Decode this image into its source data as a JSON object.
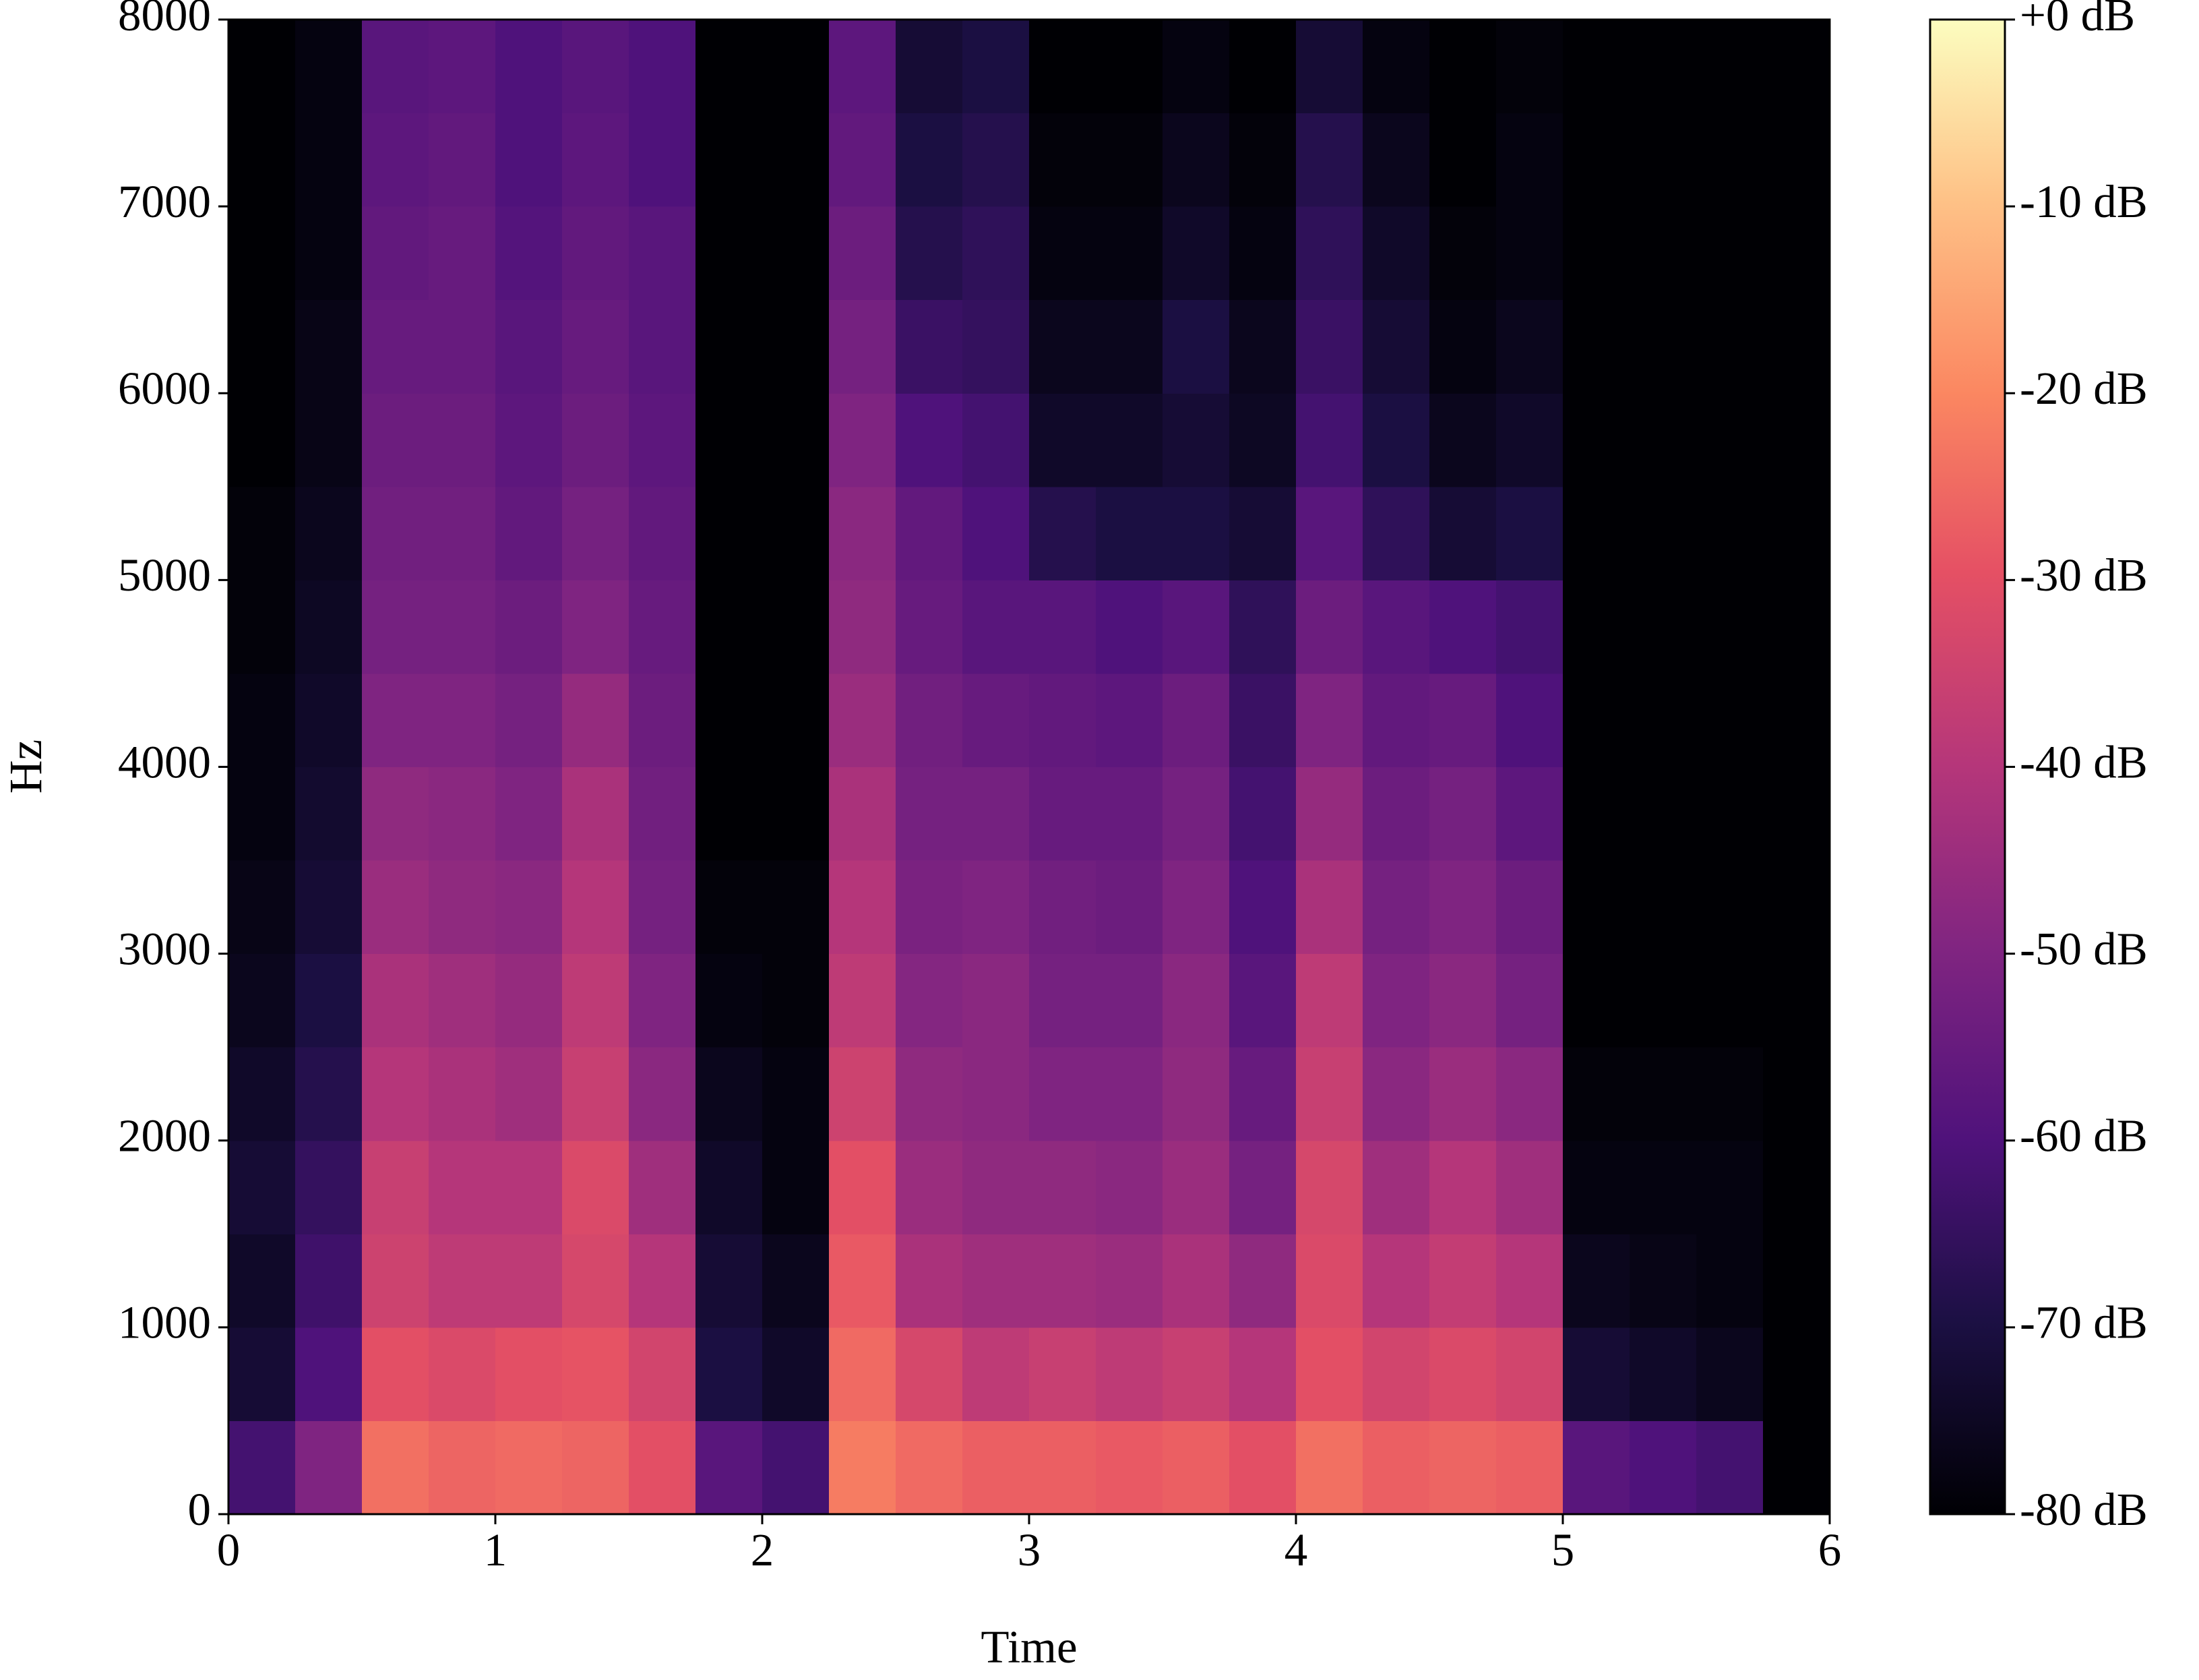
{
  "chart_data": {
    "type": "spectrogram",
    "x_label": "Time",
    "y_label": "Hz",
    "xlim": [
      0,
      6
    ],
    "xticks": [
      0,
      1,
      2,
      3,
      4,
      5,
      6
    ],
    "ylim": [
      0,
      8000
    ],
    "yticks": [
      0,
      1000,
      2000,
      3000,
      4000,
      5000,
      6000,
      7000,
      8000
    ],
    "colormap": "magma",
    "time_bins": [
      0,
      0.25,
      0.5,
      0.75,
      1,
      1.25,
      1.5,
      1.75,
      2,
      2.25,
      2.5,
      2.75,
      3,
      3.25,
      3.5,
      3.75,
      4,
      4.25,
      4.5,
      4.75,
      5,
      5.25,
      5.5,
      5.75,
      6
    ],
    "freq_bins": [
      0,
      500,
      1000,
      1500,
      2000,
      2500,
      3000,
      3500,
      4000,
      4500,
      5000,
      5500,
      6000,
      6500,
      7000,
      7500,
      8000
    ],
    "values": [
      [
        -62,
        -50,
        -24,
        -26,
        -25,
        -26,
        -30,
        -58,
        -62,
        -22,
        -25,
        -27,
        -27,
        -28,
        -27,
        -30,
        -24,
        -27,
        -26,
        -27,
        -58,
        -60,
        -62,
        -80
      ],
      [
        -72,
        -60,
        -30,
        -32,
        -30,
        -29,
        -34,
        -70,
        -74,
        -25,
        -33,
        -38,
        -36,
        -38,
        -36,
        -40,
        -30,
        -34,
        -32,
        -34,
        -72,
        -74,
        -76,
        -80
      ],
      [
        -74,
        -63,
        -35,
        -38,
        -38,
        -33,
        -40,
        -72,
        -76,
        -28,
        -42,
        -44,
        -44,
        -45,
        -42,
        -47,
        -32,
        -40,
        -37,
        -40,
        -76,
        -77,
        -78,
        -80
      ],
      [
        -72,
        -65,
        -36,
        -40,
        -40,
        -32,
        -44,
        -74,
        -78,
        -30,
        -45,
        -47,
        -47,
        -48,
        -45,
        -52,
        -33,
        -44,
        -40,
        -44,
        -78,
        -78,
        -78,
        -80
      ],
      [
        -74,
        -68,
        -40,
        -42,
        -44,
        -36,
        -48,
        -76,
        -78,
        -35,
        -47,
        -48,
        -50,
        -50,
        -47,
        -55,
        -36,
        -48,
        -45,
        -48,
        -79,
        -79,
        -79,
        -80
      ],
      [
        -76,
        -70,
        -42,
        -44,
        -46,
        -38,
        -50,
        -78,
        -79,
        -38,
        -49,
        -48,
        -52,
        -52,
        -48,
        -58,
        -38,
        -50,
        -48,
        -52,
        -80,
        -80,
        -80,
        -80
      ],
      [
        -77,
        -72,
        -45,
        -47,
        -48,
        -40,
        -52,
        -79,
        -79,
        -40,
        -51,
        -50,
        -53,
        -54,
        -50,
        -60,
        -42,
        -52,
        -50,
        -54,
        -80,
        -80,
        -80,
        -80
      ],
      [
        -78,
        -73,
        -47,
        -48,
        -50,
        -42,
        -53,
        -80,
        -80,
        -42,
        -52,
        -52,
        -55,
        -55,
        -52,
        -62,
        -46,
        -54,
        -52,
        -57,
        -80,
        -80,
        -80,
        -80
      ],
      [
        -78,
        -74,
        -50,
        -50,
        -52,
        -46,
        -54,
        -80,
        -80,
        -45,
        -53,
        -55,
        -56,
        -57,
        -54,
        -64,
        -50,
        -56,
        -55,
        -60,
        -80,
        -80,
        -80,
        -80
      ],
      [
        -79,
        -75,
        -52,
        -52,
        -54,
        -50,
        -55,
        -80,
        -80,
        -47,
        -55,
        -58,
        -58,
        -60,
        -58,
        -66,
        -54,
        -58,
        -60,
        -62,
        -80,
        -80,
        -80,
        -80
      ],
      [
        -79,
        -76,
        -53,
        -53,
        -56,
        -52,
        -56,
        -80,
        -80,
        -48,
        -56,
        -60,
        -68,
        -70,
        -70,
        -72,
        -58,
        -66,
        -72,
        -70,
        -80,
        -80,
        -80,
        -80
      ],
      [
        -80,
        -77,
        -54,
        -54,
        -57,
        -54,
        -57,
        -80,
        -80,
        -50,
        -60,
        -62,
        -74,
        -74,
        -72,
        -75,
        -62,
        -70,
        -76,
        -74,
        -80,
        -80,
        -80,
        -80
      ],
      [
        -80,
        -77,
        -55,
        -55,
        -58,
        -55,
        -58,
        -80,
        -80,
        -52,
        -64,
        -65,
        -76,
        -76,
        -70,
        -76,
        -64,
        -72,
        -78,
        -76,
        -80,
        -80,
        -80,
        -80
      ],
      [
        -80,
        -78,
        -56,
        -55,
        -59,
        -56,
        -58,
        -80,
        -80,
        -54,
        -68,
        -66,
        -78,
        -78,
        -74,
        -78,
        -66,
        -74,
        -79,
        -78,
        -80,
        -80,
        -80,
        -80
      ],
      [
        -80,
        -78,
        -57,
        -56,
        -60,
        -57,
        -60,
        -80,
        -80,
        -56,
        -70,
        -68,
        -79,
        -79,
        -76,
        -79,
        -68,
        -76,
        -80,
        -78,
        -80,
        -80,
        -80,
        -80
      ],
      [
        -80,
        -78,
        -58,
        -57,
        -60,
        -58,
        -60,
        -80,
        -80,
        -57,
        -72,
        -70,
        -80,
        -80,
        -78,
        -80,
        -72,
        -78,
        -80,
        -79,
        -80,
        -80,
        -80,
        -80
      ]
    ],
    "colorbar": {
      "lim": [
        -80,
        0
      ],
      "ticks": [
        {
          "value": 0,
          "label": "+0 dB"
        },
        {
          "value": -10,
          "label": "-10 dB"
        },
        {
          "value": -20,
          "label": "-20 dB"
        },
        {
          "value": -30,
          "label": "-30 dB"
        },
        {
          "value": -40,
          "label": "-40 dB"
        },
        {
          "value": -50,
          "label": "-50 dB"
        },
        {
          "value": -60,
          "label": "-60 dB"
        },
        {
          "value": -70,
          "label": "-70 dB"
        },
        {
          "value": -80,
          "label": "-80 dB"
        }
      ]
    }
  }
}
